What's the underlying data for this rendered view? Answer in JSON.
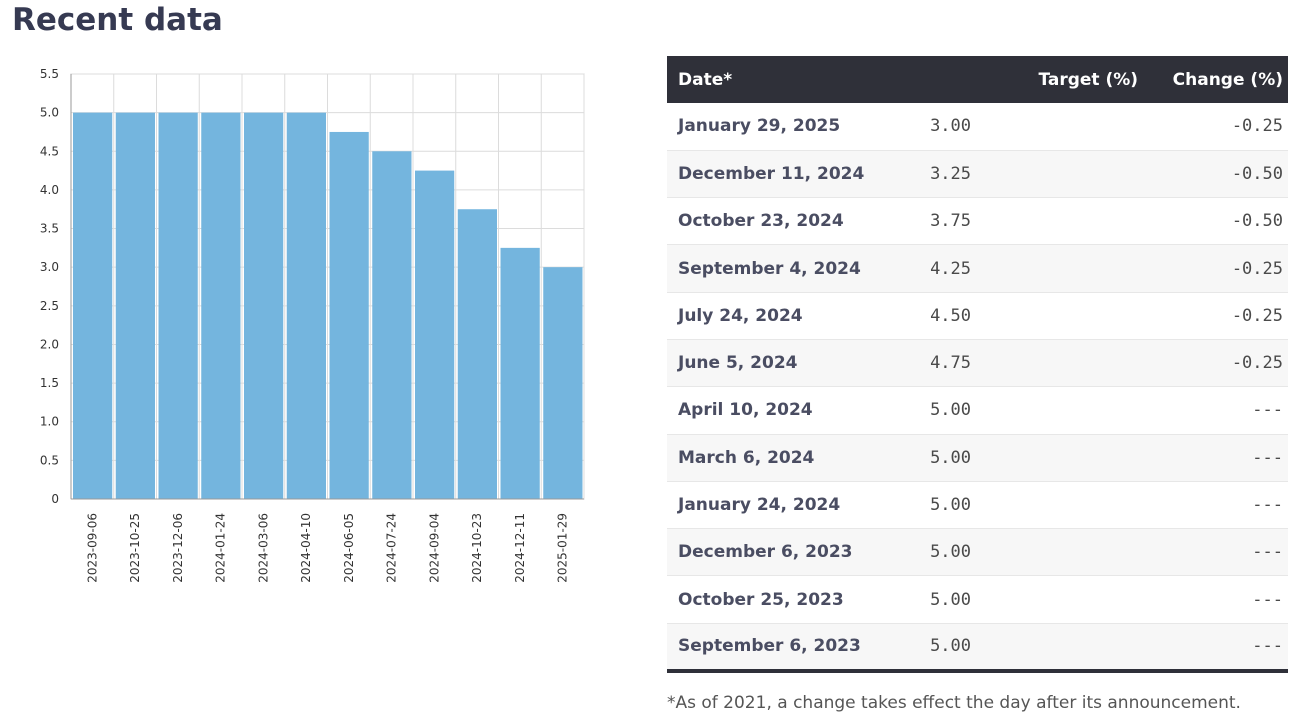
{
  "page": {
    "title": "Recent data"
  },
  "chart_data": {
    "type": "bar",
    "categories": [
      "2023-09-06",
      "2023-10-25",
      "2023-12-06",
      "2024-01-24",
      "2024-03-06",
      "2024-04-10",
      "2024-06-05",
      "2024-07-24",
      "2024-09-04",
      "2024-10-23",
      "2024-12-11",
      "2025-01-29"
    ],
    "values": [
      5.0,
      5.0,
      5.0,
      5.0,
      5.0,
      5.0,
      4.75,
      4.5,
      4.25,
      3.75,
      3.25,
      3.0
    ],
    "yticks": [
      "0",
      "0.5",
      "1.0",
      "1.5",
      "2.0",
      "2.5",
      "3.0",
      "3.5",
      "4.0",
      "4.5",
      "5.0",
      "5.5"
    ],
    "ylim": [
      0,
      5.5
    ],
    "grid": true,
    "bar_color": "#74b5de"
  },
  "table": {
    "headers": {
      "date": "Date*",
      "target": "Target (%)",
      "change": "Change (%)"
    },
    "rows": [
      {
        "date": "January 29, 2025",
        "target": "3.00",
        "change": "-0.25"
      },
      {
        "date": "December 11, 2024",
        "target": "3.25",
        "change": "-0.50"
      },
      {
        "date": "October 23, 2024",
        "target": "3.75",
        "change": "-0.50"
      },
      {
        "date": "September 4, 2024",
        "target": "4.25",
        "change": "-0.25"
      },
      {
        "date": "July 24, 2024",
        "target": "4.50",
        "change": "-0.25"
      },
      {
        "date": "June 5, 2024",
        "target": "4.75",
        "change": "-0.25"
      },
      {
        "date": "April 10, 2024",
        "target": "5.00",
        "change": "---"
      },
      {
        "date": "March 6, 2024",
        "target": "5.00",
        "change": "---"
      },
      {
        "date": "January 24, 2024",
        "target": "5.00",
        "change": "---"
      },
      {
        "date": "December 6, 2023",
        "target": "5.00",
        "change": "---"
      },
      {
        "date": "October 25, 2023",
        "target": "5.00",
        "change": "---"
      },
      {
        "date": "September 6, 2023",
        "target": "5.00",
        "change": "---"
      }
    ]
  },
  "footnote": "*As of 2021, a change takes effect the day after its announcement."
}
